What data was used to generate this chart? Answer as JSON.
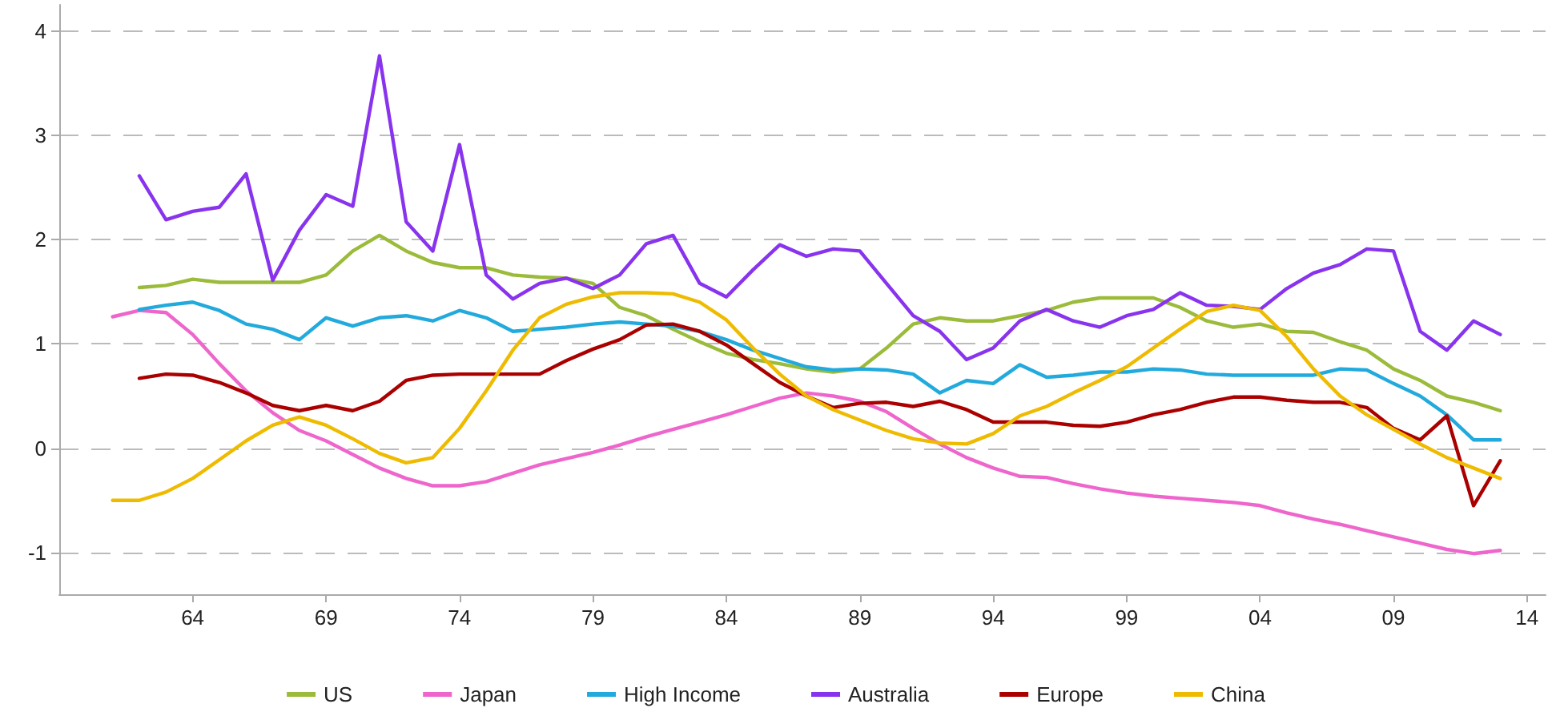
{
  "chart_data": {
    "type": "line",
    "x": [
      1961,
      1962,
      1963,
      1964,
      1965,
      1966,
      1967,
      1968,
      1969,
      1970,
      1971,
      1972,
      1973,
      1974,
      1975,
      1976,
      1977,
      1978,
      1979,
      1980,
      1981,
      1982,
      1983,
      1984,
      1985,
      1986,
      1987,
      1988,
      1989,
      1990,
      1991,
      1992,
      1993,
      1994,
      1995,
      1996,
      1997,
      1998,
      1999,
      2000,
      2001,
      2002,
      2003,
      2004,
      2005,
      2006,
      2007,
      2008,
      2009,
      2010,
      2011,
      2012,
      2013
    ],
    "series": [
      {
        "name": "US",
        "color": "#9bbb3b",
        "values": [
          null,
          1.54,
          1.56,
          1.62,
          1.59,
          1.59,
          1.59,
          1.59,
          1.66,
          1.89,
          2.04,
          1.89,
          1.78,
          1.73,
          1.73,
          1.66,
          1.64,
          1.63,
          1.58,
          1.35,
          1.27,
          1.14,
          1.02,
          0.91,
          0.85,
          0.81,
          0.76,
          0.73,
          0.76,
          0.96,
          1.19,
          1.25,
          1.22,
          1.22,
          1.27,
          1.32,
          1.4,
          1.44,
          1.44,
          1.44,
          1.35,
          1.22,
          1.16,
          1.19,
          1.12,
          1.11,
          1.02,
          0.94,
          0.76,
          0.65,
          0.5,
          0.44,
          0.36
        ]
      },
      {
        "name": "Japan",
        "color": "#ee66cc",
        "values": [
          1.26,
          1.32,
          1.3,
          1.09,
          0.81,
          0.55,
          0.34,
          0.17,
          0.07,
          -0.06,
          -0.19,
          -0.29,
          -0.36,
          -0.36,
          -0.32,
          -0.24,
          -0.16,
          -0.1,
          -0.04,
          0.03,
          0.11,
          0.18,
          0.25,
          0.32,
          0.4,
          0.48,
          0.53,
          0.5,
          0.45,
          0.35,
          0.19,
          0.04,
          -0.09,
          -0.19,
          -0.27,
          -0.28,
          -0.34,
          -0.39,
          -0.43,
          -0.46,
          -0.48,
          -0.5,
          -0.52,
          -0.55,
          -0.62,
          -0.68,
          -0.73,
          -0.79,
          -0.85,
          -0.91,
          -0.97,
          -1.01,
          -0.98
        ]
      },
      {
        "name": "High Income",
        "color": "#22aadd",
        "values": [
          null,
          1.33,
          1.37,
          1.4,
          1.32,
          1.19,
          1.14,
          1.04,
          1.25,
          1.17,
          1.25,
          1.27,
          1.22,
          1.32,
          1.25,
          1.12,
          1.14,
          1.16,
          1.19,
          1.21,
          1.19,
          1.17,
          1.12,
          1.04,
          0.94,
          0.86,
          0.78,
          0.75,
          0.76,
          0.75,
          0.71,
          0.53,
          0.65,
          0.62,
          0.8,
          0.68,
          0.7,
          0.73,
          0.73,
          0.76,
          0.75,
          0.71,
          0.7,
          0.7,
          0.7,
          0.7,
          0.76,
          0.75,
          0.62,
          0.5,
          0.32,
          0.08,
          0.08
        ]
      },
      {
        "name": "Australia",
        "color": "#8833ee",
        "values": [
          null,
          2.61,
          2.19,
          2.27,
          2.31,
          2.63,
          1.61,
          2.09,
          2.43,
          2.32,
          3.76,
          2.17,
          1.89,
          2.91,
          1.66,
          1.43,
          1.58,
          1.63,
          1.53,
          1.66,
          1.96,
          2.04,
          1.58,
          1.45,
          1.71,
          1.95,
          1.84,
          1.91,
          1.89,
          1.58,
          1.27,
          1.12,
          0.85,
          0.96,
          1.22,
          1.33,
          1.22,
          1.16,
          1.27,
          1.33,
          1.49,
          1.37,
          1.36,
          1.33,
          1.53,
          1.68,
          1.76,
          1.91,
          1.89,
          1.12,
          0.94,
          1.22,
          1.09
        ]
      },
      {
        "name": "Europe",
        "color": "#aa0000",
        "values": [
          null,
          0.67,
          0.71,
          0.7,
          0.63,
          0.53,
          0.41,
          0.36,
          0.41,
          0.36,
          0.45,
          0.65,
          0.7,
          0.71,
          0.71,
          0.71,
          0.71,
          0.84,
          0.95,
          1.04,
          1.18,
          1.19,
          1.12,
          0.99,
          0.81,
          0.63,
          0.5,
          0.39,
          0.43,
          0.44,
          0.4,
          0.45,
          0.37,
          0.25,
          0.25,
          0.25,
          0.22,
          0.21,
          0.25,
          0.32,
          0.37,
          0.44,
          0.49,
          0.49,
          0.46,
          0.44,
          0.44,
          0.39,
          0.19,
          0.08,
          0.31,
          -0.55,
          -0.12
        ]
      },
      {
        "name": "China",
        "color": "#eebb00",
        "values": [
          -0.5,
          -0.5,
          -0.42,
          -0.29,
          -0.11,
          0.07,
          0.22,
          0.3,
          0.22,
          0.09,
          -0.05,
          -0.14,
          -0.09,
          0.19,
          0.55,
          0.94,
          1.25,
          1.38,
          1.45,
          1.49,
          1.49,
          1.48,
          1.4,
          1.23,
          0.96,
          0.71,
          0.5,
          0.37,
          0.27,
          0.17,
          0.09,
          0.05,
          0.04,
          0.14,
          0.31,
          0.4,
          0.53,
          0.65,
          0.78,
          0.96,
          1.14,
          1.31,
          1.37,
          1.32,
          1.07,
          0.76,
          0.5,
          0.32,
          0.18,
          0.04,
          -0.09,
          -0.19,
          -0.29
        ]
      }
    ],
    "xlim": [
      1959,
      2014.7
    ],
    "xticks": [
      {
        "value": 1964,
        "label": "64"
      },
      {
        "value": 1969,
        "label": "69"
      },
      {
        "value": 1974,
        "label": "74"
      },
      {
        "value": 1979,
        "label": "79"
      },
      {
        "value": 1984,
        "label": "84"
      },
      {
        "value": 1989,
        "label": "89"
      },
      {
        "value": 1994,
        "label": "94"
      },
      {
        "value": 1999,
        "label": "99"
      },
      {
        "value": 2004,
        "label": "04"
      },
      {
        "value": 2009,
        "label": "09"
      },
      {
        "value": 2014,
        "label": "14"
      }
    ],
    "ylim": [
      -1.4,
      4.25
    ],
    "yticks": [
      -1,
      0,
      1,
      2,
      3,
      4
    ],
    "grid": "y",
    "legend": "bottom",
    "marker": "none",
    "line_style": "solid"
  }
}
